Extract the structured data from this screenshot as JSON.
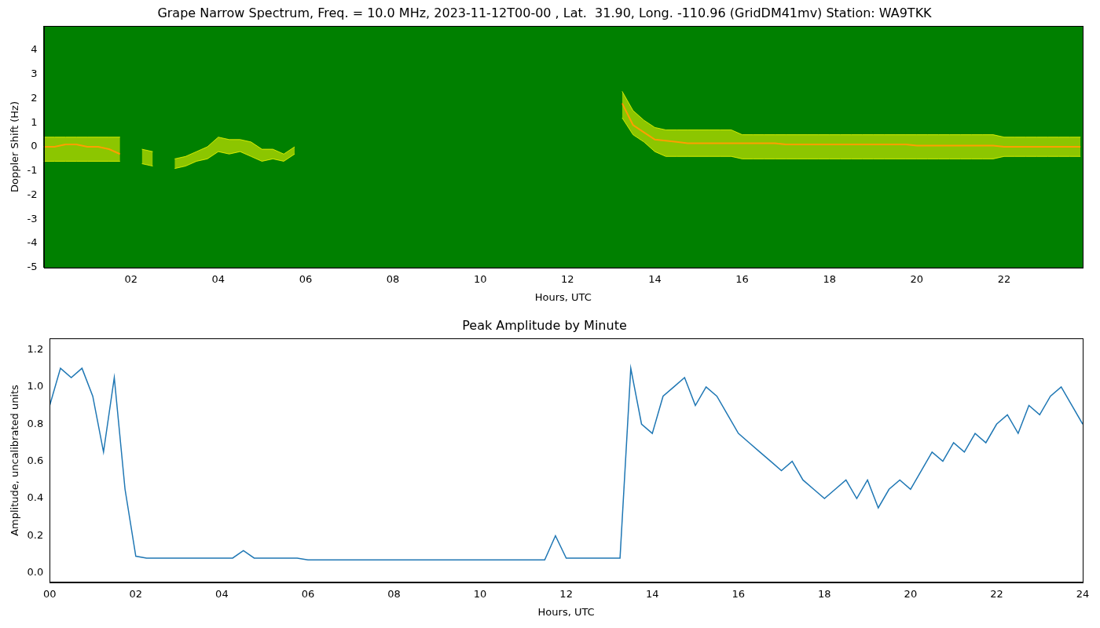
{
  "chart_data": [
    {
      "type": "spectrogram",
      "title": "Grape Narrow Spectrum, Freq. = 10.0 MHz, 2023-11-12T00-00 , Lat.  31.90, Long. -110.96 (GridDM41mv) Station: WA9TKK",
      "x_label": "Hours, UTC",
      "y_label": "Doppler Shift (Hz)",
      "x": [
        0,
        0.25,
        0.5,
        0.75,
        1,
        1.25,
        1.5,
        1.75,
        2,
        2.25,
        2.5,
        2.75,
        3,
        3.25,
        3.5,
        3.75,
        4,
        4.25,
        4.5,
        4.75,
        5,
        5.25,
        5.5,
        5.75,
        6,
        6.25,
        6.5,
        6.75,
        7,
        7.25,
        7.5,
        7.75,
        8,
        8.25,
        8.5,
        8.75,
        9,
        9.25,
        9.5,
        9.75,
        10,
        10.25,
        10.5,
        10.75,
        11,
        11.25,
        11.5,
        11.75,
        12,
        12.25,
        12.5,
        12.75,
        13,
        13.25,
        13.5,
        13.75,
        14,
        14.25,
        14.5,
        14.75,
        15,
        15.25,
        15.5,
        15.75,
        16,
        16.25,
        16.5,
        16.75,
        17,
        17.25,
        17.5,
        17.75,
        18,
        18.25,
        18.5,
        18.75,
        19,
        19.25,
        19.5,
        19.75,
        20,
        20.25,
        20.5,
        20.75,
        21,
        21.25,
        21.5,
        21.75,
        22,
        22.25,
        22.5,
        22.75,
        23,
        23.25,
        23.5,
        23.75
      ],
      "series": [
        {
          "type": "band",
          "color": "#ffff00",
          "values": [
            0.4,
            0.4,
            0.4,
            0.4,
            0.4,
            0.4,
            0.4,
            0.4,
            null,
            -0.1,
            -0.2,
            null,
            -0.5,
            -0.4,
            -0.2,
            0,
            0.4,
            0.3,
            0.3,
            0.2,
            -0.1,
            -0.1,
            -0.3,
            0.0,
            null,
            null,
            null,
            null,
            null,
            null,
            null,
            null,
            null,
            null,
            null,
            null,
            null,
            null,
            null,
            null,
            null,
            null,
            null,
            null,
            null,
            null,
            null,
            null,
            null,
            null,
            null,
            null,
            null,
            2.3,
            1.5,
            1.1,
            0.8,
            0.7,
            0.7,
            0.7,
            0.7,
            0.7,
            0.7,
            0.7,
            0.5,
            0.5,
            0.5,
            0.5,
            0.5,
            0.5,
            0.5,
            0.5,
            0.5,
            0.5,
            0.5,
            0.5,
            0.5,
            0.5,
            0.5,
            0.5,
            0.5,
            0.5,
            0.5,
            0.5,
            0.5,
            0.5,
            0.5,
            0.5,
            0.4,
            0.4,
            0.4,
            0.4,
            0.4,
            0.4,
            0.4,
            0.4
          ]
        },
        {
          "type": "band",
          "color": "#ffff00",
          "values": [
            -0.6,
            -0.6,
            -0.6,
            -0.6,
            -0.6,
            -0.6,
            -0.6,
            -0.6,
            null,
            -0.7,
            -0.8,
            null,
            -0.9,
            -0.8,
            -0.6,
            -0.5,
            -0.2,
            -0.3,
            -0.2,
            -0.4,
            -0.6,
            -0.5,
            -0.6,
            -0.3,
            null,
            null,
            null,
            null,
            null,
            null,
            null,
            null,
            null,
            null,
            null,
            null,
            null,
            null,
            null,
            null,
            null,
            null,
            null,
            null,
            null,
            null,
            null,
            null,
            null,
            null,
            null,
            null,
            null,
            1.2,
            0.5,
            0.2,
            -0.2,
            -0.4,
            -0.4,
            -0.4,
            -0.4,
            -0.4,
            -0.4,
            -0.4,
            -0.5,
            -0.5,
            -0.5,
            -0.5,
            -0.5,
            -0.5,
            -0.5,
            -0.5,
            -0.5,
            -0.5,
            -0.5,
            -0.5,
            -0.5,
            -0.5,
            -0.5,
            -0.5,
            -0.5,
            -0.5,
            -0.5,
            -0.5,
            -0.5,
            -0.5,
            -0.5,
            -0.5,
            -0.4,
            -0.4,
            -0.4,
            -0.4,
            -0.4,
            -0.4,
            -0.4,
            -0.4
          ]
        },
        {
          "type": "line",
          "color": "#ff2a00",
          "values": [
            0,
            0,
            0.1,
            0.1,
            0,
            0,
            -0.1,
            -0.3,
            null,
            null,
            null,
            null,
            null,
            null,
            null,
            null,
            null,
            null,
            null,
            null,
            null,
            null,
            null,
            null,
            null,
            null,
            null,
            null,
            null,
            null,
            null,
            null,
            null,
            null,
            null,
            null,
            null,
            null,
            null,
            null,
            null,
            null,
            null,
            null,
            null,
            null,
            null,
            null,
            null,
            null,
            null,
            null,
            null,
            1.8,
            0.9,
            0.6,
            0.3,
            0.25,
            0.2,
            0.15,
            0.15,
            0.15,
            0.15,
            0.15,
            0.15,
            0.15,
            0.15,
            0.15,
            0.1,
            0.1,
            0.1,
            0.1,
            0.1,
            0.1,
            0.1,
            0.1,
            0.1,
            0.1,
            0.1,
            0.1,
            0.05,
            0.05,
            0.05,
            0.05,
            0.05,
            0.05,
            0.05,
            0.05,
            0.0,
            0.0,
            0.0,
            0.0,
            0.0,
            0.0,
            0.0,
            0.0
          ]
        }
      ],
      "xlim": [
        0,
        23.8
      ],
      "xticks": [
        {
          "value": 2,
          "label": "02"
        },
        {
          "value": 4,
          "label": "04"
        },
        {
          "value": 6,
          "label": "06"
        },
        {
          "value": 8,
          "label": "08"
        },
        10,
        12,
        14,
        16,
        18,
        20,
        22
      ],
      "ylim": [
        -5,
        5
      ],
      "yticks": [
        -5,
        -4,
        -3,
        -2,
        -1,
        0,
        1,
        2,
        3,
        4
      ],
      "grid": false
    },
    {
      "type": "line",
      "title": "Peak Amplitude by Minute",
      "x_label": "Hours, UTC",
      "y_label": "Amplitude, uncalibrated units",
      "x": [
        0,
        0.25,
        0.5,
        0.75,
        1,
        1.25,
        1.5,
        1.75,
        2,
        2.25,
        2.5,
        2.75,
        3,
        3.25,
        3.5,
        3.75,
        4,
        4.25,
        4.5,
        4.75,
        5,
        5.25,
        5.5,
        5.75,
        6,
        6.25,
        6.5,
        6.75,
        7,
        7.25,
        7.5,
        7.75,
        8,
        8.25,
        8.5,
        8.75,
        9,
        9.25,
        9.5,
        9.75,
        10,
        10.25,
        10.5,
        10.75,
        11,
        11.25,
        11.5,
        11.75,
        12,
        12.25,
        12.5,
        12.75,
        13,
        13.25,
        13.5,
        13.75,
        14,
        14.25,
        14.5,
        14.75,
        15,
        15.25,
        15.5,
        15.75,
        16,
        16.25,
        16.5,
        16.75,
        17,
        17.25,
        17.5,
        17.75,
        18,
        18.25,
        18.5,
        18.75,
        19,
        19.25,
        19.5,
        19.75,
        20,
        20.25,
        20.5,
        20.75,
        21,
        21.25,
        21.5,
        21.75,
        22,
        22.25,
        22.5,
        22.75,
        23,
        23.25,
        23.5,
        23.75,
        24
      ],
      "series": [
        {
          "color": "#1f77b4",
          "values": [
            0.9,
            1.1,
            1.05,
            1.1,
            0.95,
            0.65,
            1.05,
            0.45,
            0.09,
            0.08,
            0.08,
            0.08,
            0.08,
            0.08,
            0.08,
            0.08,
            0.08,
            0.08,
            0.12,
            0.08,
            0.08,
            0.08,
            0.08,
            0.08,
            0.07,
            0.07,
            0.07,
            0.07,
            0.07,
            0.07,
            0.07,
            0.07,
            0.07,
            0.07,
            0.07,
            0.07,
            0.07,
            0.07,
            0.07,
            0.07,
            0.07,
            0.07,
            0.07,
            0.07,
            0.07,
            0.07,
            0.07,
            0.2,
            0.08,
            0.08,
            0.08,
            0.08,
            0.08,
            0.08,
            1.1,
            0.8,
            0.75,
            0.95,
            1.0,
            1.05,
            0.9,
            1.0,
            0.95,
            0.85,
            0.75,
            0.7,
            0.65,
            0.6,
            0.55,
            0.6,
            0.5,
            0.45,
            0.4,
            0.45,
            0.5,
            0.4,
            0.5,
            0.35,
            0.45,
            0.5,
            0.45,
            0.55,
            0.65,
            0.6,
            0.7,
            0.65,
            0.75,
            0.7,
            0.8,
            0.85,
            0.75,
            0.9,
            0.85,
            0.95,
            1.0,
            0.9,
            0.8
          ]
        }
      ],
      "xlim": [
        0,
        24
      ],
      "xticks": [
        {
          "value": 0,
          "label": "00"
        },
        {
          "value": 2,
          "label": "02"
        },
        {
          "value": 4,
          "label": "04"
        },
        {
          "value": 6,
          "label": "06"
        },
        {
          "value": 8,
          "label": "08"
        },
        10,
        12,
        14,
        16,
        18,
        20,
        22,
        24
      ],
      "ylim": [
        -0.05,
        1.26
      ],
      "yticks": [
        {
          "value": 0,
          "label": "0.0"
        },
        0.2,
        0.4,
        0.6,
        0.8,
        {
          "value": 1,
          "label": "1.0"
        },
        1.2
      ],
      "grid": false
    }
  ]
}
